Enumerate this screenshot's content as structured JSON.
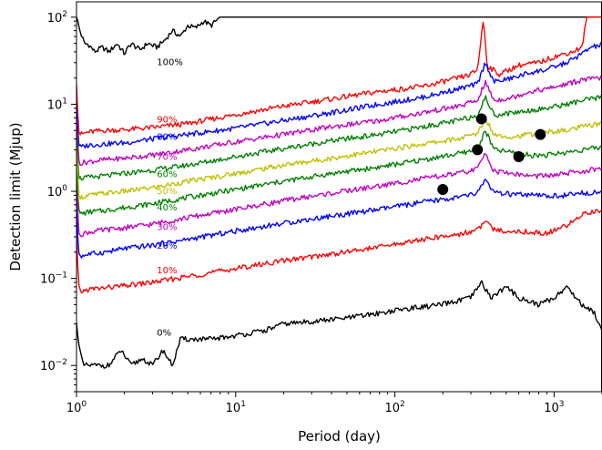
{
  "chart_data": {
    "type": "line",
    "title": "",
    "xlabel": "Period (day)",
    "ylabel": "Detection limit (Mjup)",
    "xscale": "log",
    "yscale": "log",
    "xlim": [
      1,
      2000
    ],
    "ylim": [
      0.005,
      150
    ],
    "grid": false,
    "x_ticks": [
      {
        "value": 1,
        "base": "10",
        "exp": "0"
      },
      {
        "value": 10,
        "base": "10",
        "exp": "1"
      },
      {
        "value": 100,
        "base": "10",
        "exp": "2"
      },
      {
        "value": 1000,
        "base": "10",
        "exp": "3"
      }
    ],
    "y_ticks": [
      {
        "value": 0.01,
        "base": "10",
        "exp": "−2"
      },
      {
        "value": 0.1,
        "base": "10",
        "exp": "−1"
      },
      {
        "value": 1,
        "base": "10",
        "exp": "0"
      },
      {
        "value": 10,
        "base": "10",
        "exp": "1"
      },
      {
        "value": 100,
        "base": "10",
        "exp": "2"
      }
    ],
    "series": [
      {
        "name": "100%",
        "color": "#000000",
        "label_at": [
          3.2,
          28
        ],
        "points": [
          [
            1.0,
            100
          ],
          [
            1.05,
            70
          ],
          [
            1.12,
            50
          ],
          [
            1.2,
            48
          ],
          [
            1.3,
            40
          ],
          [
            1.45,
            45
          ],
          [
            1.6,
            40
          ],
          [
            1.8,
            50
          ],
          [
            2.0,
            38
          ],
          [
            2.2,
            50
          ],
          [
            2.5,
            42
          ],
          [
            2.8,
            50
          ],
          [
            3.2,
            45
          ],
          [
            3.6,
            55
          ],
          [
            4.0,
            70
          ],
          [
            4.5,
            60
          ],
          [
            5.0,
            80
          ],
          [
            5.6,
            75
          ],
          [
            6.3,
            90
          ],
          [
            7.0,
            80
          ],
          [
            8.0,
            100
          ],
          [
            10.0,
            100
          ],
          [
            12.0,
            100
          ],
          [
            2000,
            100
          ]
        ]
      },
      {
        "name": "90%",
        "color": "#ff0000",
        "label_at": [
          3.2,
          6.2
        ],
        "points": [
          [
            1.0,
            18
          ],
          [
            1.03,
            5
          ],
          [
            1.06,
            4.5
          ],
          [
            1.2,
            4.8
          ],
          [
            1.5,
            5.0
          ],
          [
            2.0,
            5.1
          ],
          [
            3.0,
            5.4
          ],
          [
            5.0,
            6.0
          ],
          [
            10,
            7.6
          ],
          [
            20,
            9.5
          ],
          [
            40,
            11.5
          ],
          [
            80,
            14
          ],
          [
            150,
            16
          ],
          [
            250,
            20
          ],
          [
            300,
            22
          ],
          [
            330,
            25
          ],
          [
            360,
            95
          ],
          [
            380,
            28
          ],
          [
            450,
            22
          ],
          [
            600,
            28
          ],
          [
            800,
            30
          ],
          [
            1000,
            35
          ],
          [
            1300,
            40
          ],
          [
            1500,
            45
          ],
          [
            1600,
            100
          ],
          [
            2000,
            100
          ]
        ]
      },
      {
        "name": "80%",
        "color": "#0000ff",
        "label_at": [
          3.2,
          3.9
        ],
        "points": [
          [
            1.0,
            10
          ],
          [
            1.03,
            3.5
          ],
          [
            1.06,
            3.2
          ],
          [
            1.2,
            3.4
          ],
          [
            1.5,
            3.5
          ],
          [
            2.0,
            3.6
          ],
          [
            3.0,
            4.0
          ],
          [
            5.0,
            4.5
          ],
          [
            10,
            5.3
          ],
          [
            20,
            6.5
          ],
          [
            40,
            8.0
          ],
          [
            80,
            10
          ],
          [
            150,
            12
          ],
          [
            250,
            15
          ],
          [
            330,
            17
          ],
          [
            370,
            30
          ],
          [
            420,
            18
          ],
          [
            550,
            20
          ],
          [
            700,
            23
          ],
          [
            900,
            25
          ],
          [
            1200,
            30
          ],
          [
            1500,
            38
          ],
          [
            1700,
            45
          ],
          [
            2000,
            48
          ]
        ]
      },
      {
        "name": "70%",
        "color": "#bf00bf",
        "label_at": [
          3.2,
          2.3
        ],
        "points": [
          [
            1.0,
            7
          ],
          [
            1.03,
            2.3
          ],
          [
            1.06,
            2.1
          ],
          [
            1.2,
            2.2
          ],
          [
            1.5,
            2.3
          ],
          [
            2.0,
            2.4
          ],
          [
            3.0,
            2.6
          ],
          [
            5.0,
            3.0
          ],
          [
            10,
            3.7
          ],
          [
            20,
            4.5
          ],
          [
            40,
            5.5
          ],
          [
            80,
            6.5
          ],
          [
            150,
            8
          ],
          [
            250,
            9.5
          ],
          [
            330,
            11
          ],
          [
            370,
            18
          ],
          [
            420,
            11
          ],
          [
            550,
            12
          ],
          [
            700,
            14
          ],
          [
            900,
            15
          ],
          [
            1200,
            17
          ],
          [
            1500,
            19
          ],
          [
            2000,
            20
          ]
        ]
      },
      {
        "name": "60%",
        "color": "#008000",
        "label_at": [
          3.2,
          1.45
        ],
        "points": [
          [
            1.0,
            5
          ],
          [
            1.03,
            1.5
          ],
          [
            1.06,
            1.4
          ],
          [
            1.2,
            1.45
          ],
          [
            1.5,
            1.5
          ],
          [
            2.0,
            1.6
          ],
          [
            3.0,
            1.75
          ],
          [
            5.0,
            2.0
          ],
          [
            10,
            2.5
          ],
          [
            20,
            3.1
          ],
          [
            40,
            3.8
          ],
          [
            80,
            4.5
          ],
          [
            150,
            5.5
          ],
          [
            250,
            6.5
          ],
          [
            330,
            7.5
          ],
          [
            370,
            12
          ],
          [
            420,
            7.5
          ],
          [
            550,
            8
          ],
          [
            700,
            8.5
          ],
          [
            900,
            9
          ],
          [
            1200,
            10
          ],
          [
            1500,
            11
          ],
          [
            2000,
            12
          ]
        ]
      },
      {
        "name": "50%",
        "color": "#bfbf00",
        "label_at": [
          3.2,
          0.93
        ],
        "points": [
          [
            1.0,
            3
          ],
          [
            1.03,
            1.0
          ],
          [
            1.06,
            0.85
          ],
          [
            1.2,
            0.9
          ],
          [
            1.5,
            0.95
          ],
          [
            2.0,
            1.0
          ],
          [
            3.0,
            1.1
          ],
          [
            5.0,
            1.3
          ],
          [
            10,
            1.6
          ],
          [
            20,
            2.0
          ],
          [
            40,
            2.4
          ],
          [
            80,
            2.9
          ],
          [
            150,
            3.5
          ],
          [
            250,
            4.0
          ],
          [
            330,
            4.6
          ],
          [
            370,
            7
          ],
          [
            420,
            4.5
          ],
          [
            550,
            4.2
          ],
          [
            700,
            4.5
          ],
          [
            900,
            4.8
          ],
          [
            1200,
            5.0
          ],
          [
            1500,
            5.5
          ],
          [
            2000,
            6.0
          ]
        ]
      },
      {
        "name": "40%",
        "color": "#008000",
        "label_at": [
          3.2,
          0.6
        ],
        "points": [
          [
            1.0,
            1.8
          ],
          [
            1.03,
            0.6
          ],
          [
            1.06,
            0.55
          ],
          [
            1.2,
            0.58
          ],
          [
            1.5,
            0.6
          ],
          [
            2.0,
            0.65
          ],
          [
            3.0,
            0.72
          ],
          [
            5.0,
            0.85
          ],
          [
            10,
            1.05
          ],
          [
            20,
            1.3
          ],
          [
            40,
            1.6
          ],
          [
            80,
            1.9
          ],
          [
            150,
            2.3
          ],
          [
            250,
            2.7
          ],
          [
            330,
            3.0
          ],
          [
            370,
            5
          ],
          [
            420,
            3.0
          ],
          [
            550,
            2.8
          ],
          [
            700,
            2.6
          ],
          [
            900,
            2.6
          ],
          [
            1200,
            2.8
          ],
          [
            1500,
            3.0
          ],
          [
            2000,
            3.2
          ]
        ]
      },
      {
        "name": "30%",
        "color": "#bf00bf",
        "label_at": [
          3.2,
          0.36
        ],
        "points": [
          [
            1.0,
            1.2
          ],
          [
            1.03,
            0.35
          ],
          [
            1.06,
            0.32
          ],
          [
            1.2,
            0.34
          ],
          [
            1.5,
            0.36
          ],
          [
            2.0,
            0.38
          ],
          [
            3.0,
            0.42
          ],
          [
            5.0,
            0.5
          ],
          [
            10,
            0.62
          ],
          [
            20,
            0.78
          ],
          [
            40,
            0.95
          ],
          [
            80,
            1.15
          ],
          [
            150,
            1.4
          ],
          [
            250,
            1.6
          ],
          [
            330,
            1.8
          ],
          [
            370,
            2.8
          ],
          [
            420,
            1.7
          ],
          [
            550,
            1.6
          ],
          [
            700,
            1.5
          ],
          [
            900,
            1.5
          ],
          [
            1200,
            1.6
          ],
          [
            1500,
            1.7
          ],
          [
            2000,
            1.8
          ]
        ]
      },
      {
        "name": "20%",
        "color": "#0000ff",
        "label_at": [
          3.2,
          0.22
        ],
        "points": [
          [
            1.0,
            0.6
          ],
          [
            1.03,
            0.2
          ],
          [
            1.06,
            0.18
          ],
          [
            1.2,
            0.19
          ],
          [
            1.5,
            0.2
          ],
          [
            2.0,
            0.22
          ],
          [
            3.0,
            0.24
          ],
          [
            5.0,
            0.28
          ],
          [
            10,
            0.35
          ],
          [
            20,
            0.43
          ],
          [
            40,
            0.52
          ],
          [
            80,
            0.62
          ],
          [
            150,
            0.75
          ],
          [
            250,
            0.85
          ],
          [
            330,
            0.95
          ],
          [
            370,
            1.4
          ],
          [
            420,
            0.95
          ],
          [
            550,
            0.92
          ],
          [
            700,
            0.9
          ],
          [
            900,
            0.88
          ],
          [
            1200,
            0.9
          ],
          [
            1500,
            0.95
          ],
          [
            2000,
            1.0
          ]
        ]
      },
      {
        "name": "10%",
        "color": "#ff0000",
        "label_at": [
          3.2,
          0.115
        ],
        "points": [
          [
            1.0,
            0.3
          ],
          [
            1.03,
            0.08
          ],
          [
            1.06,
            0.07
          ],
          [
            1.2,
            0.075
          ],
          [
            1.5,
            0.078
          ],
          [
            2.0,
            0.082
          ],
          [
            3.0,
            0.09
          ],
          [
            5.0,
            0.105
          ],
          [
            10,
            0.13
          ],
          [
            20,
            0.16
          ],
          [
            40,
            0.19
          ],
          [
            80,
            0.23
          ],
          [
            150,
            0.28
          ],
          [
            250,
            0.32
          ],
          [
            330,
            0.36
          ],
          [
            370,
            0.45
          ],
          [
            420,
            0.36
          ],
          [
            550,
            0.35
          ],
          [
            700,
            0.34
          ],
          [
            900,
            0.33
          ],
          [
            1200,
            0.4
          ],
          [
            1500,
            0.55
          ],
          [
            2000,
            0.6
          ]
        ]
      },
      {
        "name": "0%",
        "color": "#000000",
        "label_at": [
          3.2,
          0.022
        ],
        "points": [
          [
            1.0,
            0.03
          ],
          [
            1.05,
            0.015
          ],
          [
            1.1,
            0.01
          ],
          [
            1.3,
            0.01
          ],
          [
            1.6,
            0.01
          ],
          [
            1.9,
            0.015
          ],
          [
            2.2,
            0.01
          ],
          [
            2.6,
            0.012
          ],
          [
            3.0,
            0.01
          ],
          [
            3.5,
            0.015
          ],
          [
            4.0,
            0.01
          ],
          [
            4.5,
            0.02
          ],
          [
            7.0,
            0.02
          ],
          [
            10,
            0.022
          ],
          [
            15,
            0.025
          ],
          [
            20,
            0.03
          ],
          [
            30,
            0.032
          ],
          [
            50,
            0.035
          ],
          [
            80,
            0.04
          ],
          [
            120,
            0.045
          ],
          [
            200,
            0.05
          ],
          [
            300,
            0.06
          ],
          [
            350,
            0.09
          ],
          [
            400,
            0.06
          ],
          [
            500,
            0.08
          ],
          [
            600,
            0.06
          ],
          [
            800,
            0.05
          ],
          [
            1000,
            0.06
          ],
          [
            1200,
            0.08
          ],
          [
            1500,
            0.05
          ],
          [
            1800,
            0.04
          ],
          [
            2000,
            0.025
          ]
        ]
      }
    ],
    "markers": [
      {
        "x": 200,
        "y": 1.05
      },
      {
        "x": 330,
        "y": 3.0
      },
      {
        "x": 350,
        "y": 6.8
      },
      {
        "x": 600,
        "y": 2.5
      },
      {
        "x": 820,
        "y": 4.5
      }
    ]
  }
}
